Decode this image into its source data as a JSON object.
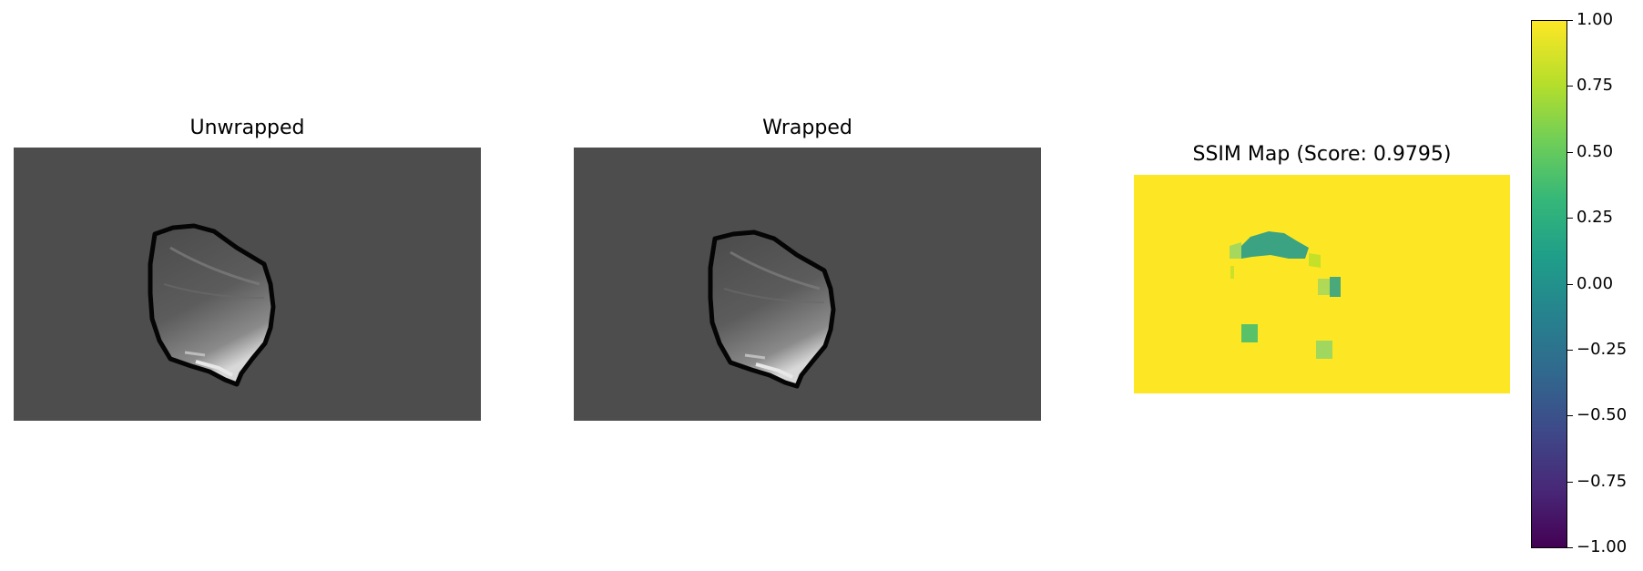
{
  "chart_data": [
    {
      "type": "image",
      "title": "Unwrapped",
      "colormap": "gray",
      "background_color": "#4d4d4d"
    },
    {
      "type": "image",
      "title": "Wrapped",
      "colormap": "gray",
      "background_color": "#4d4d4d"
    },
    {
      "type": "heatmap",
      "title": "SSIM Map (Score: 0.9795)",
      "colormap": "viridis",
      "colorbar": {
        "range": [
          -1.0,
          1.0
        ],
        "ticks": [
          "1.00",
          "0.75",
          "0.50",
          "0.25",
          "0.00",
          "−0.25",
          "−0.50",
          "−0.75",
          "−1.00"
        ],
        "tick_values": [
          1.0,
          0.75,
          0.5,
          0.25,
          0.0,
          -0.25,
          -0.5,
          -0.75,
          -1.0
        ]
      },
      "dominant_value": 1.0,
      "dominant_color": "#fde725"
    }
  ]
}
